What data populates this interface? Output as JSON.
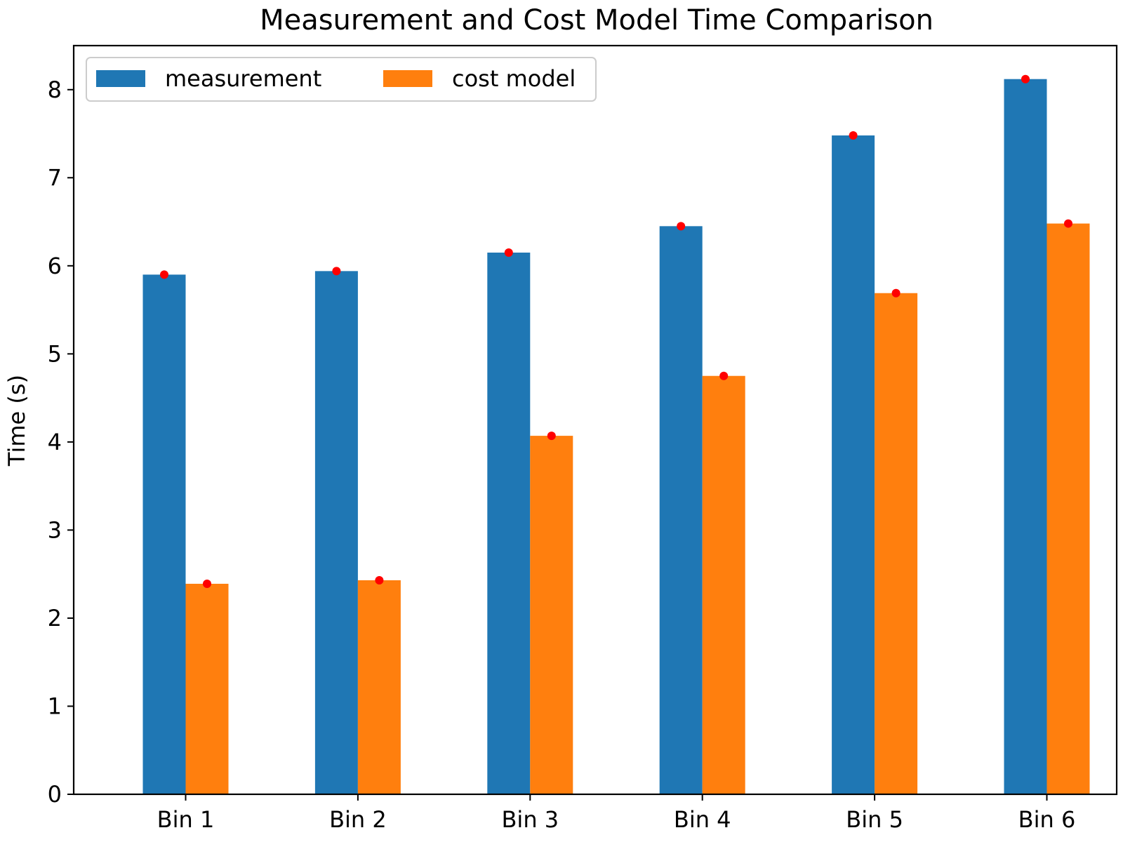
{
  "chart_data": {
    "type": "bar",
    "title": "Measurement and Cost Model Time Comparison",
    "xlabel": "",
    "ylabel": "Time (s)",
    "categories": [
      "Bin 1",
      "Bin 2",
      "Bin 3",
      "Bin 4",
      "Bin 5",
      "Bin 6"
    ],
    "series": [
      {
        "name": "measurement",
        "color": "#1f77b4",
        "values": [
          5.9,
          5.94,
          6.15,
          6.45,
          7.48,
          8.12
        ]
      },
      {
        "name": "cost model",
        "color": "#ff7f0e",
        "values": [
          2.39,
          2.43,
          4.07,
          4.75,
          5.69,
          6.48
        ]
      }
    ],
    "markers": {
      "shape": "dot",
      "color": "#ff0000",
      "position": "top of each bar"
    },
    "ylim": [
      0,
      8.5
    ],
    "yticks": [
      0,
      1,
      2,
      3,
      4,
      5,
      6,
      7,
      8
    ],
    "grid": false,
    "legend": {
      "placement": "top-left",
      "columns": 2
    }
  }
}
